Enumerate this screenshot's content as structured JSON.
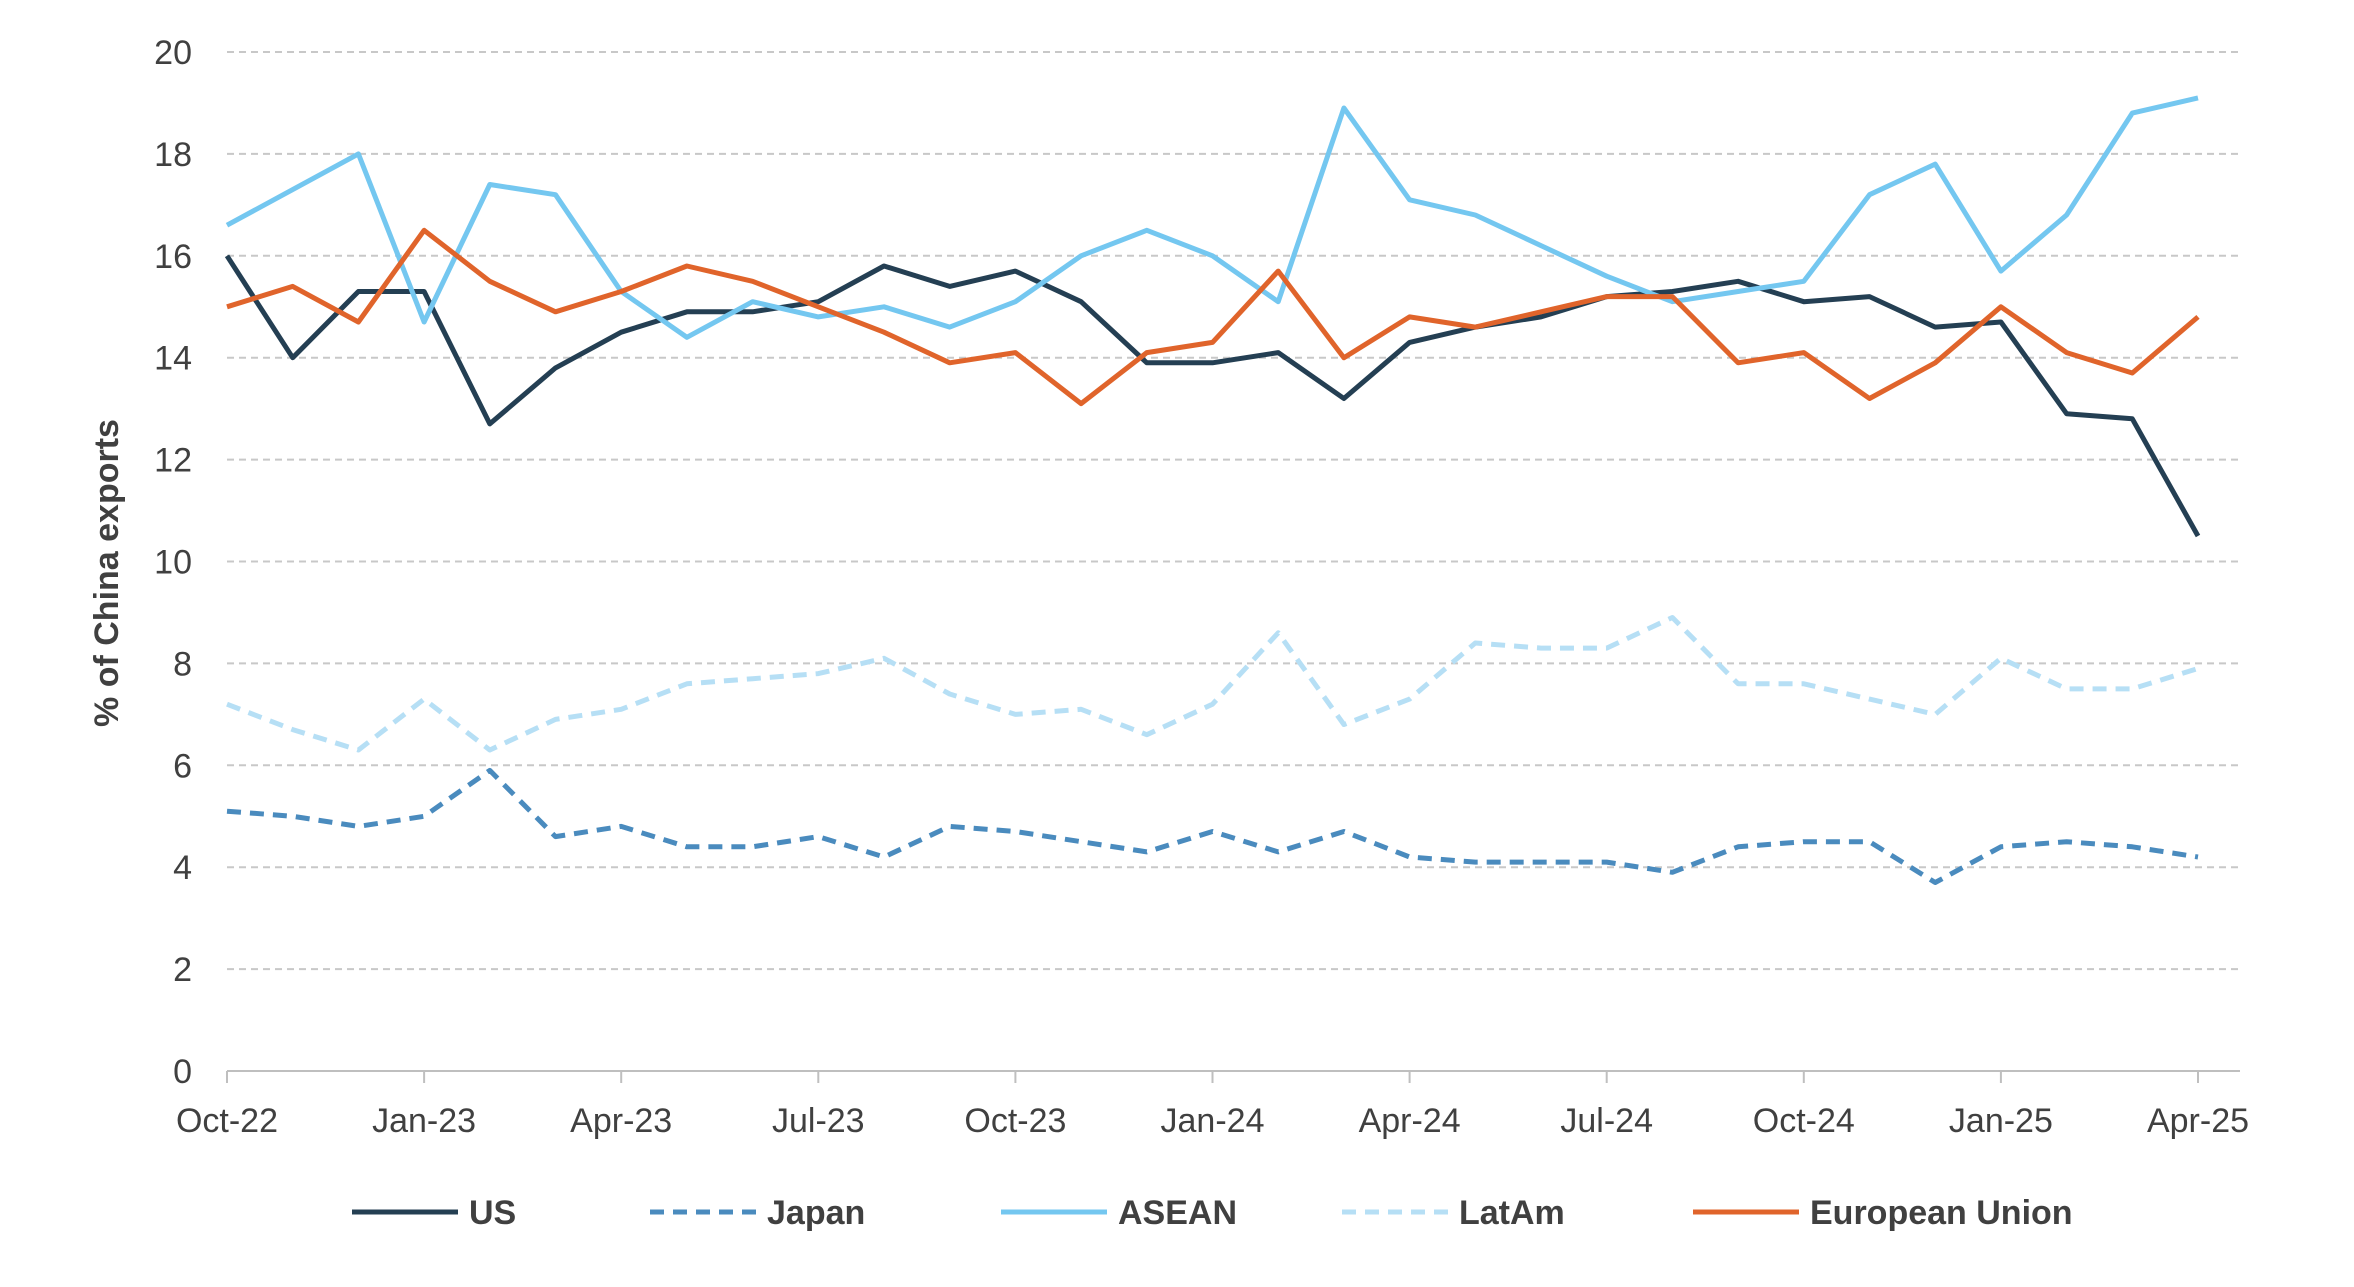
{
  "chart_data": {
    "type": "line",
    "title": "",
    "xlabel": "",
    "ylabel": "% of China exports",
    "ylim": [
      0,
      20
    ],
    "yticks": [
      0,
      2,
      4,
      6,
      8,
      10,
      12,
      14,
      16,
      18,
      20
    ],
    "grid": "horizontal dashed",
    "legend_position": "bottom",
    "x_tick_labels": [
      "Oct-22",
      "Jan-23",
      "Apr-23",
      "Jul-23",
      "Oct-23",
      "Jan-24",
      "Apr-24",
      "Jul-24",
      "Oct-24",
      "Jan-25",
      "Apr-25"
    ],
    "x": [
      "Oct-22",
      "Nov-22",
      "Dec-22",
      "Jan-23",
      "Feb-23",
      "Mar-23",
      "Apr-23",
      "May-23",
      "Jun-23",
      "Jul-23",
      "Aug-23",
      "Sep-23",
      "Oct-23",
      "Nov-23",
      "Dec-23",
      "Jan-24",
      "Feb-24",
      "Mar-24",
      "Apr-24",
      "May-24",
      "Jun-24",
      "Jul-24",
      "Aug-24",
      "Sep-24",
      "Oct-24",
      "Nov-24",
      "Dec-24",
      "Jan-25",
      "Feb-25",
      "Mar-25",
      "Apr-25"
    ],
    "series": [
      {
        "name": "US",
        "color": "#243F53",
        "dash": "solid",
        "values": [
          16.0,
          14.0,
          15.3,
          15.3,
          12.7,
          13.8,
          14.5,
          14.9,
          14.9,
          15.1,
          15.8,
          15.4,
          15.7,
          15.1,
          13.9,
          13.9,
          14.1,
          13.2,
          14.3,
          14.6,
          14.8,
          15.2,
          15.3,
          15.5,
          15.1,
          15.2,
          14.6,
          14.7,
          12.9,
          12.8,
          10.5
        ]
      },
      {
        "name": "Japan",
        "color": "#4A8BBE",
        "dash": "dashed",
        "values": [
          5.1,
          5.0,
          4.8,
          5.0,
          5.9,
          4.6,
          4.8,
          4.4,
          4.4,
          4.6,
          4.2,
          4.8,
          4.7,
          4.5,
          4.3,
          4.7,
          4.3,
          4.7,
          4.2,
          4.1,
          4.1,
          4.1,
          3.9,
          4.4,
          4.5,
          4.5,
          3.7,
          4.4,
          4.5,
          4.4,
          4.2
        ]
      },
      {
        "name": "ASEAN",
        "color": "#74C7F0",
        "dash": "solid",
        "values": [
          16.6,
          17.3,
          18.0,
          14.7,
          17.4,
          17.2,
          15.3,
          14.4,
          15.1,
          14.8,
          15.0,
          14.6,
          15.1,
          16.0,
          16.5,
          16.0,
          15.1,
          18.9,
          17.1,
          16.8,
          16.2,
          15.6,
          15.1,
          15.3,
          15.5,
          17.2,
          17.8,
          15.7,
          16.8,
          18.8,
          19.1
        ]
      },
      {
        "name": "LatAm",
        "color": "#B6DFF5",
        "dash": "dashed",
        "values": [
          7.2,
          6.7,
          6.3,
          7.3,
          6.3,
          6.9,
          7.1,
          7.6,
          7.7,
          7.8,
          8.1,
          7.4,
          7.0,
          7.1,
          6.6,
          7.2,
          8.6,
          6.8,
          7.3,
          8.4,
          8.3,
          8.3,
          8.9,
          7.6,
          7.6,
          7.3,
          7.0,
          8.1,
          7.5,
          7.5,
          7.9
        ]
      },
      {
        "name": "European Union",
        "color": "#E0642B",
        "dash": "solid",
        "values": [
          15.0,
          15.4,
          14.7,
          16.5,
          15.5,
          14.9,
          15.3,
          15.8,
          15.5,
          15.0,
          14.5,
          13.9,
          14.1,
          13.1,
          14.1,
          14.3,
          15.7,
          14.0,
          14.8,
          14.6,
          14.9,
          15.2,
          15.2,
          13.9,
          14.1,
          13.2,
          13.9,
          15.0,
          14.1,
          13.7,
          14.8
        ]
      }
    ]
  }
}
